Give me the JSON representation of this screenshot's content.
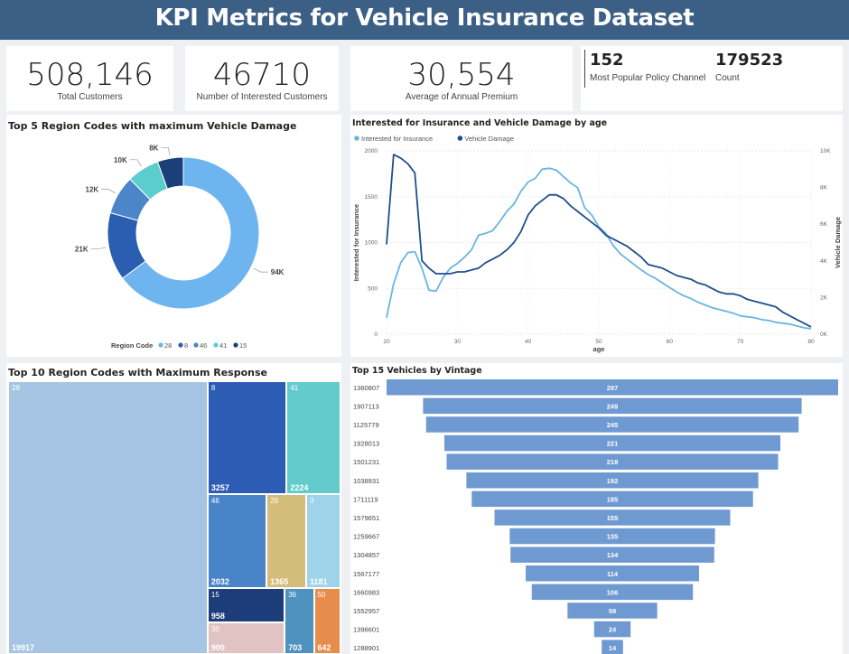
{
  "header": {
    "title": "KPI Metrics for Vehicle Insurance Dataset"
  },
  "kpis": {
    "total_customers": {
      "value": "508,146",
      "label": "Total Customers"
    },
    "interested_customers": {
      "value": "46710",
      "label": "Number of Interested Customers"
    },
    "annual_premium": {
      "value": "30,554",
      "label": "Average of Annual Premium"
    },
    "policy_channel": {
      "value": "152",
      "label": "Most Popular Policy Channel"
    },
    "count": {
      "value": "179523",
      "label": "Count"
    }
  },
  "chart_data": [
    {
      "type": "donut",
      "title": "Top 5 Region Codes with maximum Vehicle Damage",
      "legend_title": "Region Code",
      "categories": [
        "28",
        "8",
        "46",
        "41",
        "15"
      ],
      "values": [
        94,
        21,
        12,
        10,
        8
      ],
      "data_labels": [
        "94K",
        "21K",
        "12K",
        "10K",
        "8K"
      ],
      "colors": [
        "#6eb5f0",
        "#2a5eb0",
        "#4a86c8",
        "#5ccdcd",
        "#1b3f78"
      ]
    },
    {
      "type": "line",
      "title": "Interested for Insurance and Vehicle Damage by age",
      "xlabel": "age",
      "ylabel": "Interested for Insurance",
      "y2label": "Vehicle Damage",
      "xlim": [
        20,
        80
      ],
      "ylim": [
        0,
        2000
      ],
      "y2lim": [
        0,
        10000
      ],
      "x_ticks": [
        "20",
        "30",
        "40",
        "50",
        "60",
        "70",
        "80"
      ],
      "y_ticks": [
        "0",
        "500",
        "1000",
        "1500",
        "2000"
      ],
      "y2_ticks": [
        "0K",
        "2K",
        "4K",
        "6K",
        "8K",
        "10K"
      ],
      "x": [
        20,
        21,
        22,
        23,
        24,
        25,
        26,
        27,
        28,
        29,
        30,
        31,
        32,
        33,
        34,
        35,
        36,
        37,
        38,
        39,
        40,
        41,
        42,
        43,
        44,
        45,
        46,
        47,
        48,
        49,
        50,
        51,
        52,
        53,
        54,
        55,
        56,
        57,
        58,
        59,
        60,
        61,
        62,
        63,
        64,
        65,
        66,
        67,
        68,
        69,
        70,
        71,
        72,
        73,
        74,
        75,
        76,
        77,
        78,
        79,
        80
      ],
      "series": [
        {
          "name": "Interested for Insurance",
          "axis": "left",
          "color": "#6bb5e0",
          "values": [
            180,
            550,
            780,
            890,
            900,
            720,
            480,
            470,
            620,
            720,
            770,
            840,
            920,
            1080,
            1100,
            1130,
            1230,
            1340,
            1420,
            1560,
            1660,
            1700,
            1800,
            1810,
            1790,
            1720,
            1650,
            1600,
            1380,
            1300,
            1170,
            1100,
            970,
            880,
            820,
            760,
            700,
            650,
            610,
            560,
            510,
            460,
            420,
            390,
            350,
            320,
            290,
            270,
            250,
            230,
            200,
            190,
            180,
            160,
            150,
            130,
            120,
            110,
            90,
            70,
            60
          ]
        },
        {
          "name": "Vehicle Damage",
          "axis": "right",
          "color": "#1f4e8c",
          "values": [
            4900,
            9800,
            9600,
            9300,
            8800,
            4000,
            3600,
            3300,
            3300,
            3300,
            3400,
            3400,
            3500,
            3600,
            3900,
            4100,
            4300,
            4600,
            5000,
            5600,
            6500,
            7000,
            7300,
            7600,
            7600,
            7400,
            7000,
            6700,
            6400,
            6100,
            5800,
            5400,
            5200,
            5000,
            4800,
            4500,
            4200,
            3800,
            3700,
            3600,
            3400,
            3200,
            3100,
            3000,
            2800,
            2700,
            2500,
            2300,
            2200,
            2200,
            2100,
            1900,
            1800,
            1700,
            1600,
            1500,
            1200,
            1000,
            800,
            600,
            400
          ]
        }
      ]
    },
    {
      "type": "treemap",
      "title": "Top 10 Region Codes with Maximum Response",
      "items": [
        {
          "name": "28",
          "value": 19917,
          "color": "#a6c4e4"
        },
        {
          "name": "8",
          "value": 3257,
          "color": "#2c5cb4"
        },
        {
          "name": "41",
          "value": 2224,
          "color": "#63cbcb"
        },
        {
          "name": "46",
          "value": 2032,
          "color": "#4a84c8"
        },
        {
          "name": "29",
          "value": 1365,
          "color": "#d4bd7a"
        },
        {
          "name": "3",
          "value": 1181,
          "color": "#9ed3ea"
        },
        {
          "name": "15",
          "value": 958,
          "color": "#1d3d7a"
        },
        {
          "name": "30",
          "value": 900,
          "color": "#e0c4c4"
        },
        {
          "name": "36",
          "value": 703,
          "color": "#4f92bf"
        },
        {
          "name": "50",
          "value": 642,
          "color": "#e88c4c"
        }
      ]
    },
    {
      "type": "funnel",
      "title": "Top 15 Vehicles by Vintage",
      "color": "#6f9ad1",
      "categories": [
        "1360807",
        "1907113",
        "1125779",
        "1928013",
        "1501231",
        "1038931",
        "1711119",
        "1579651",
        "1259667",
        "1304857",
        "1567177",
        "1660983",
        "1552957",
        "1396601",
        "1288901"
      ],
      "values": [
        297,
        249,
        245,
        221,
        218,
        192,
        185,
        155,
        135,
        134,
        114,
        106,
        59,
        24,
        14
      ]
    }
  ]
}
